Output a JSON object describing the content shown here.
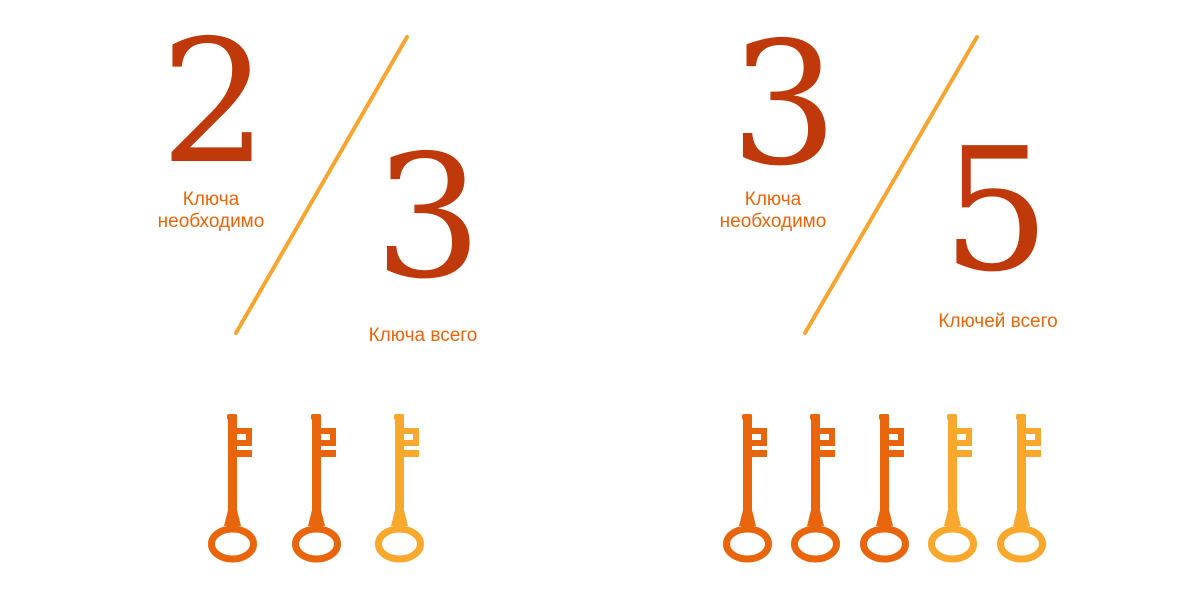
{
  "colors": {
    "numeral": "#c0390b",
    "caption": "#e8650c",
    "slash": "#f7a531",
    "key_required": "#e8650c",
    "key_extra": "#f9a82e"
  },
  "icons": {
    "key": "key-icon"
  },
  "left": {
    "numerator": "2",
    "denominator": "3",
    "numerator_caption_line1": "Ключа",
    "numerator_caption_line2": "необходимо",
    "denominator_caption": "Ключа всего",
    "keys_required": 2,
    "keys_total": 3
  },
  "right": {
    "numerator": "3",
    "denominator": "5",
    "numerator_caption_line1": "Ключа",
    "numerator_caption_line2": "необходимо",
    "denominator_caption": "Ключей всего",
    "keys_required": 3,
    "keys_total": 5
  }
}
